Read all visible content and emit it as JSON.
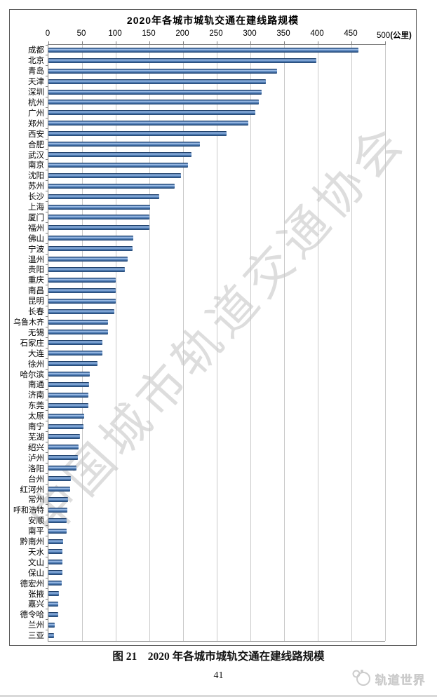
{
  "page": {
    "caption": "图 21　2020 年各城市城轨交通在建线路规模",
    "page_number": "41",
    "watermark_diagonal": "中国城市轨道交通协会",
    "watermark_footer": "轨道世界"
  },
  "chart_data": {
    "type": "bar",
    "orientation": "horizontal",
    "title": "2020年各城市城轨交通在建线路规模",
    "unit_label": "(公里)",
    "xlabel": "",
    "ylabel": "",
    "xlim": [
      0,
      500
    ],
    "x_ticks": [
      0,
      50,
      100,
      150,
      200,
      250,
      300,
      350,
      400,
      450,
      500
    ],
    "grid": true,
    "bar_color": "#4a75ad",
    "categories": [
      "成都",
      "北京",
      "青岛",
      "天津",
      "深圳",
      "杭州",
      "广州",
      "郑州",
      "西安",
      "合肥",
      "武汉",
      "南京",
      "沈阳",
      "苏州",
      "长沙",
      "上海",
      "厦门",
      "福州",
      "佛山",
      "宁波",
      "温州",
      "贵阳",
      "重庆",
      "南昌",
      "昆明",
      "长春",
      "乌鲁木齐",
      "无锡",
      "石家庄",
      "大连",
      "徐州",
      "哈尔滨",
      "南通",
      "济南",
      "东莞",
      "太原",
      "南宁",
      "芜湖",
      "绍兴",
      "泸州",
      "洛阳",
      "台州",
      "红河州",
      "常州",
      "呼和浩特",
      "安顺",
      "南平",
      "黔南州",
      "天水",
      "文山",
      "保山",
      "德宏州",
      "张掖",
      "嘉兴",
      "德令哈",
      "兰州",
      "三亚"
    ],
    "values": [
      460,
      398,
      340,
      323,
      317,
      313,
      307,
      297,
      265,
      225,
      212,
      207,
      197,
      187,
      165,
      151,
      150,
      150,
      126,
      125,
      118,
      114,
      100,
      100,
      100,
      98,
      89,
      89,
      80,
      80,
      73,
      61,
      60,
      59,
      59,
      53,
      52,
      47,
      45,
      44,
      42,
      33,
      32,
      29,
      28,
      27,
      27,
      22,
      21,
      21,
      21,
      20,
      16,
      15,
      15,
      9,
      8
    ]
  }
}
